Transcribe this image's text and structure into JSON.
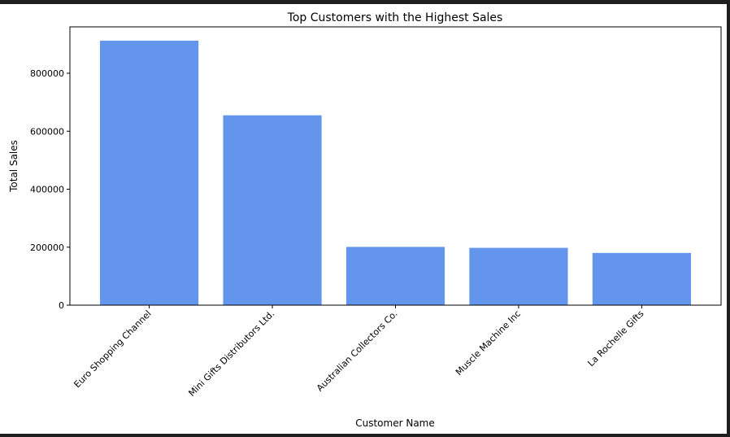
{
  "chart_data": {
    "type": "bar",
    "title": "Top Customers with the Highest Sales",
    "xlabel": "Customer Name",
    "ylabel": "Total Sales",
    "categories": [
      "Euro Shopping Channel",
      "Mini Gifts Distributors Ltd.",
      "Australian Collectors  Co.",
      "Muscle Machine Inc",
      "La Rochelle Gifts"
    ],
    "values": [
      912294,
      654858,
      200995,
      197737,
      180125
    ],
    "ylim": [
      0,
      960000
    ],
    "yticks": [
      0,
      200000,
      400000,
      600000,
      800000
    ],
    "ytick_labels": [
      "0",
      "200000",
      "400000",
      "600000",
      "800000"
    ],
    "bar_color": "#6495ED",
    "grid": false
  }
}
